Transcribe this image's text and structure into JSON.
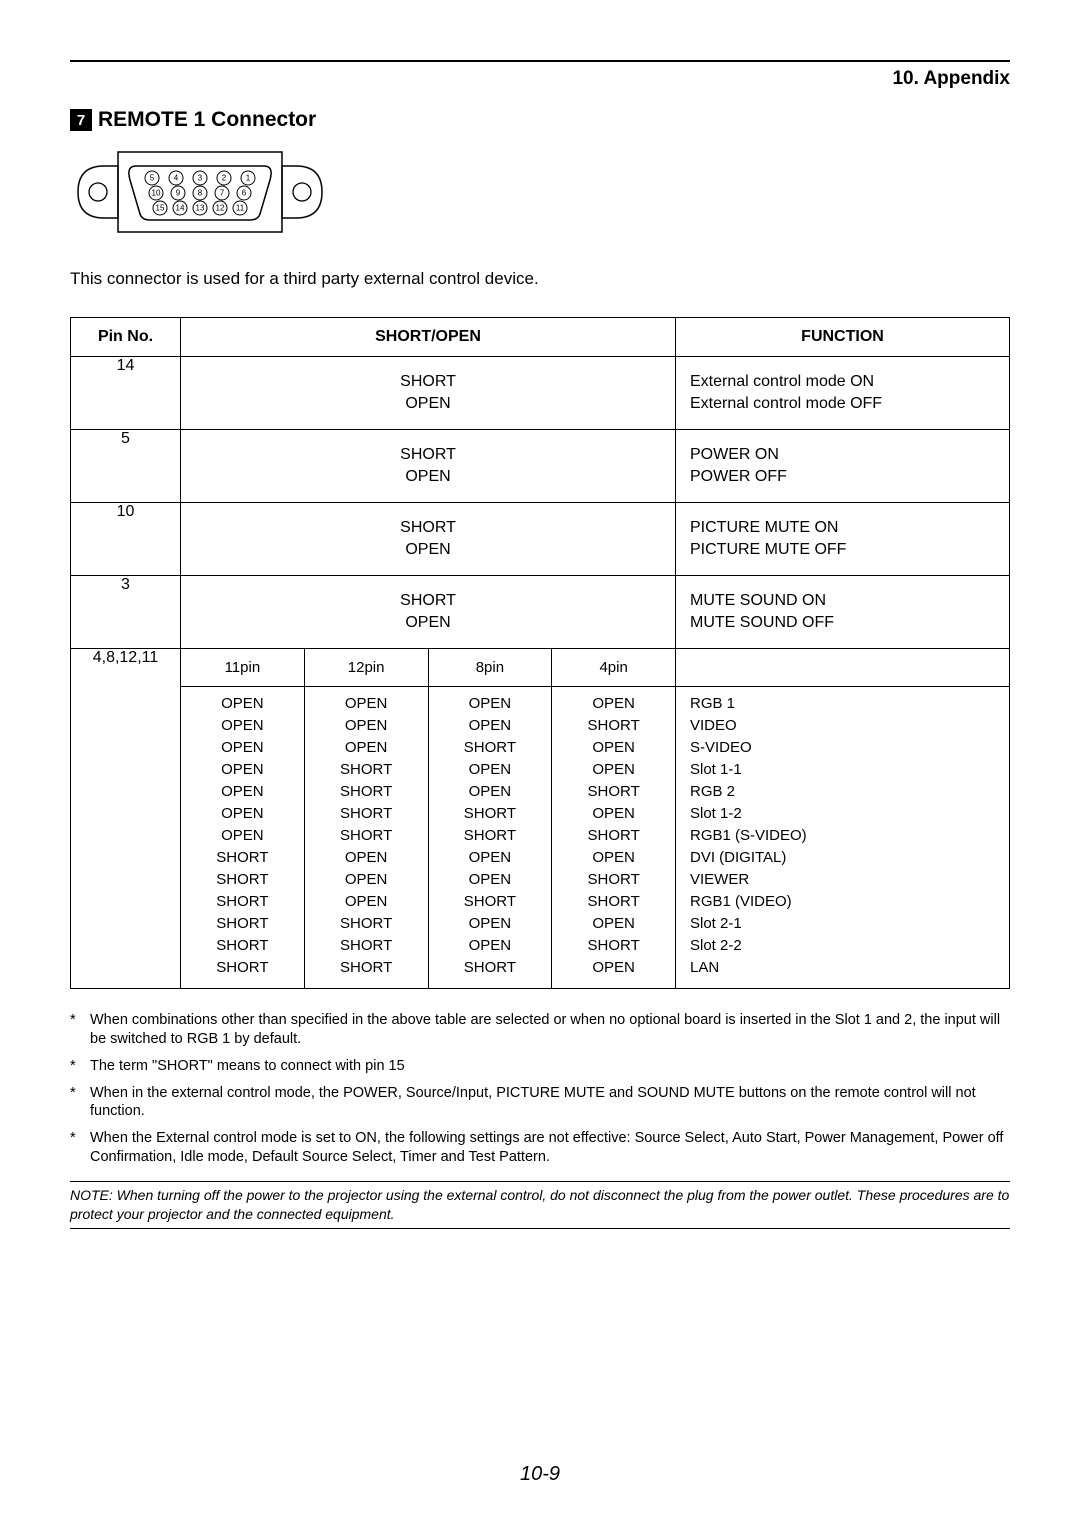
{
  "header": {
    "chapter": "10. Appendix"
  },
  "section": {
    "number": "7",
    "title": "REMOTE 1 Connector"
  },
  "description": "This connector is used for a third party external control device.",
  "table": {
    "headers": {
      "pin": "Pin No.",
      "short": "SHORT/OPEN",
      "func": "FUNCTION"
    },
    "simple_rows": [
      {
        "pin": "14",
        "short": [
          "SHORT",
          "OPEN"
        ],
        "func": [
          "External control mode ON",
          "External control mode OFF"
        ]
      },
      {
        "pin": "5",
        "short": [
          "SHORT",
          "OPEN"
        ],
        "func": [
          "POWER ON",
          "POWER OFF"
        ]
      },
      {
        "pin": "10",
        "short": [
          "SHORT",
          "OPEN"
        ],
        "func": [
          "PICTURE MUTE ON",
          "PICTURE MUTE OFF"
        ]
      },
      {
        "pin": "3",
        "short": [
          "SHORT",
          "OPEN"
        ],
        "func": [
          "MUTE SOUND ON",
          "MUTE SOUND OFF"
        ]
      }
    ],
    "matrix": {
      "pin": "4,8,12,11",
      "col_heads": [
        "11pin",
        "12pin",
        "8pin",
        "4pin"
      ],
      "rows": [
        {
          "v": [
            "OPEN",
            "OPEN",
            "OPEN",
            "OPEN"
          ],
          "f": "RGB 1"
        },
        {
          "v": [
            "OPEN",
            "OPEN",
            "OPEN",
            "SHORT"
          ],
          "f": "VIDEO"
        },
        {
          "v": [
            "OPEN",
            "OPEN",
            "SHORT",
            "OPEN"
          ],
          "f": "S-VIDEO"
        },
        {
          "v": [
            "OPEN",
            "SHORT",
            "OPEN",
            "OPEN"
          ],
          "f": "Slot 1-1"
        },
        {
          "v": [
            "OPEN",
            "SHORT",
            "OPEN",
            "SHORT"
          ],
          "f": "RGB 2"
        },
        {
          "v": [
            "OPEN",
            "SHORT",
            "SHORT",
            "OPEN"
          ],
          "f": "Slot 1-2"
        },
        {
          "v": [
            "OPEN",
            "SHORT",
            "SHORT",
            "SHORT"
          ],
          "f": "RGB1 (S-VIDEO)"
        },
        {
          "v": [
            "SHORT",
            "OPEN",
            "OPEN",
            "OPEN"
          ],
          "f": "DVI (DIGITAL)"
        },
        {
          "v": [
            "SHORT",
            "OPEN",
            "OPEN",
            "SHORT"
          ],
          "f": "VIEWER"
        },
        {
          "v": [
            "SHORT",
            "OPEN",
            "SHORT",
            "SHORT"
          ],
          "f": "RGB1 (VIDEO)"
        },
        {
          "v": [
            "SHORT",
            "SHORT",
            "OPEN",
            "OPEN"
          ],
          "f": "Slot 2-1"
        },
        {
          "v": [
            "SHORT",
            "SHORT",
            "OPEN",
            "SHORT"
          ],
          "f": "Slot 2-2"
        },
        {
          "v": [
            "SHORT",
            "SHORT",
            "SHORT",
            "OPEN"
          ],
          "f": "LAN"
        }
      ]
    }
  },
  "notes": [
    "When combinations other than specified in the above table are selected or when no optional board is inserted in the Slot 1 and 2, the input will be switched to RGB 1 by default.",
    "The term \"SHORT\" means to connect with pin 15",
    "When in the external control mode, the POWER, Source/Input, PICTURE MUTE and SOUND MUTE buttons on the remote control will not function.",
    "When the External control mode is set to ON, the following settings are not effective: Source Select, Auto Start, Power Management, Power off Confirmation, Idle mode, Default Source Select, Timer and Test Pattern."
  ],
  "note_block": "NOTE: When turning off the power to the projector using the external control, do not disconnect the plug from the power outlet. These procedures are to protect your projector and the connected equipment.",
  "page_number": "10-9",
  "connector_pins": {
    "row1": [
      "5",
      "4",
      "3",
      "2",
      "1"
    ],
    "row2": [
      "10",
      "9",
      "8",
      "7",
      "6"
    ],
    "row3": [
      "15",
      "14",
      "13",
      "12",
      "11"
    ]
  }
}
